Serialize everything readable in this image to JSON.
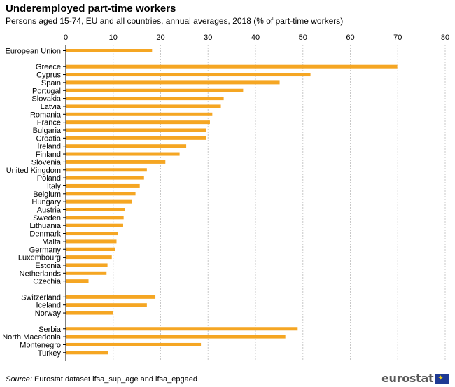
{
  "header": {
    "title": "Underemployed part-time workers",
    "subtitle": "Persons aged 15-74, EU and all countries, annual averages, 2018 (% of part-time workers)"
  },
  "footer": {
    "source_label": "Source:",
    "source_text": " Eurostat dataset lfsa_sup_age and lfsa_epgaed",
    "logo_text": "eurostat",
    "logo_icon": "eu-flag-icon"
  },
  "colors": {
    "bar": "#f5a623",
    "grid": "#c8c8c8"
  },
  "chart_data": {
    "type": "bar",
    "orientation": "horizontal",
    "title": "Underemployed part-time workers",
    "subtitle": "Persons aged 15-74, EU and all countries, annual averages, 2018 (% of part-time workers)",
    "xlabel": "",
    "ylabel": "",
    "xlim": [
      0,
      80
    ],
    "ticks": [
      0,
      10,
      20,
      30,
      40,
      50,
      60,
      70,
      80
    ],
    "tick_position": "top",
    "grid": true,
    "categories": [
      "European Union",
      "",
      "Greece",
      "Cyprus",
      "Spain",
      "Portugal",
      "Slovakia",
      "Latvia",
      "Romania",
      "France",
      "Bulgaria",
      "Croatia",
      "Ireland",
      "Finland",
      "Slovenia",
      "United Kingdom",
      "Poland",
      "Italy",
      "Belgium",
      "Hungary",
      "Austria",
      "Sweden",
      "Lithuania",
      "Denmark",
      "Malta",
      "Germany",
      "Luxembourg",
      "Estonia",
      "Netherlands",
      "Czechia",
      "",
      "Switzerland",
      "Iceland",
      "Norway",
      "",
      "Serbia",
      "North Macedonia",
      "Montenegro",
      "Turkey"
    ],
    "values": [
      18.2,
      null,
      69.9,
      51.6,
      45.1,
      37.4,
      33.3,
      32.7,
      30.9,
      30.4,
      29.6,
      29.6,
      25.4,
      24.0,
      21.0,
      17.1,
      16.5,
      15.6,
      14.7,
      13.9,
      12.4,
      12.2,
      12.1,
      11.0,
      10.7,
      10.4,
      9.7,
      8.8,
      8.6,
      4.8,
      null,
      18.9,
      17.1,
      10.0,
      null,
      48.9,
      46.3,
      28.5,
      8.9
    ]
  }
}
